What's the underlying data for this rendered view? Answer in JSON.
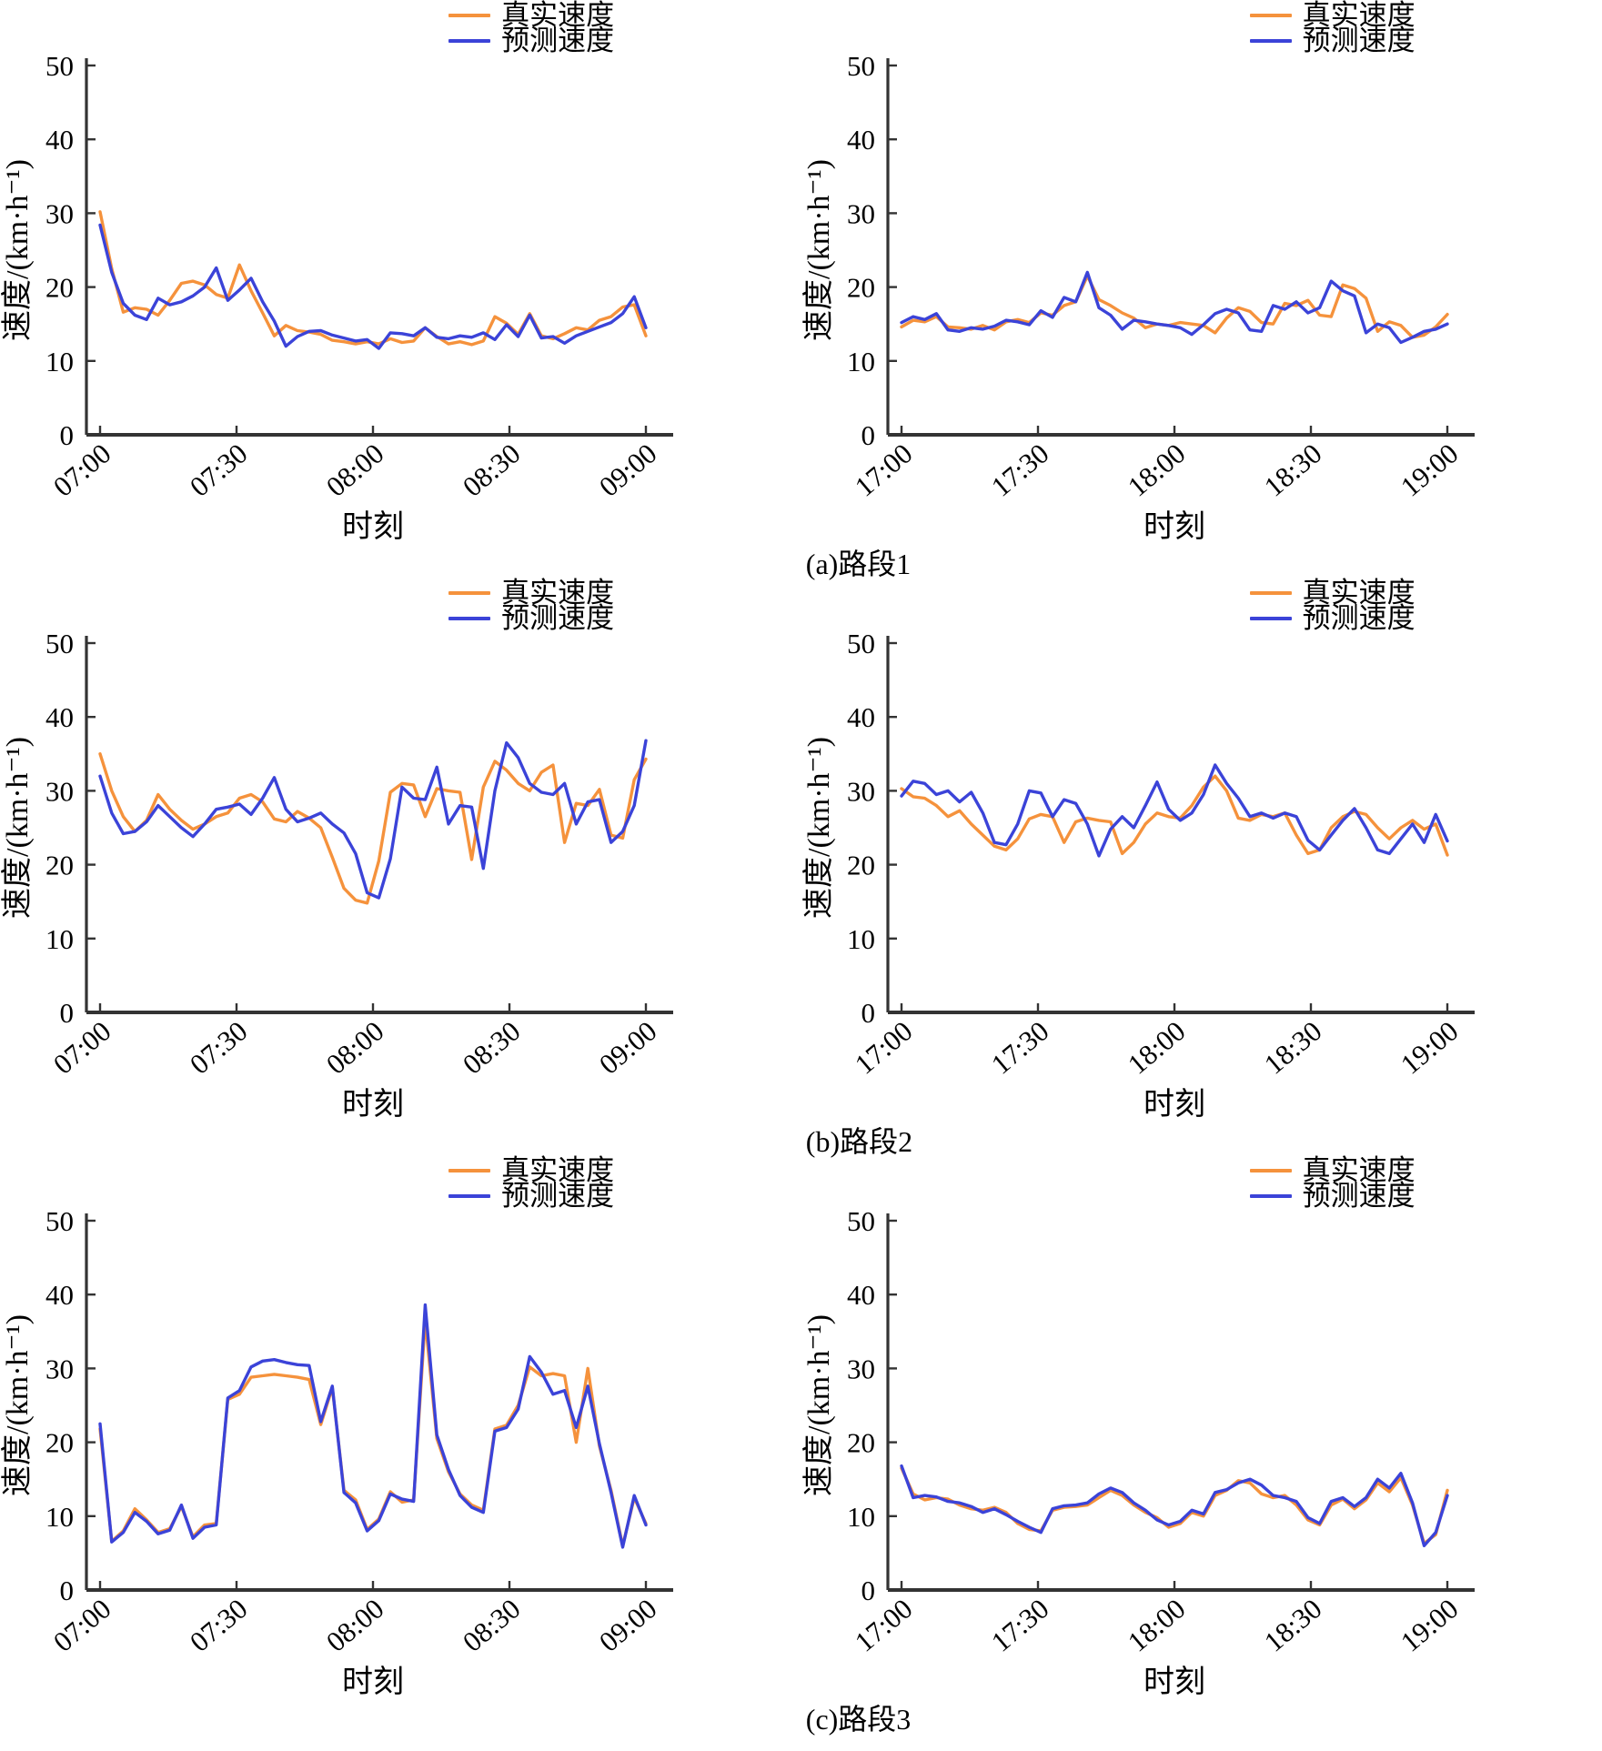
{
  "page": {
    "background": "#ffffff"
  },
  "colors": {
    "real_series": "#f5923c",
    "pred_series": "#3b43d8",
    "axis": "#333333",
    "text": "#000000"
  },
  "legend": {
    "real": "真实速度",
    "pred": "预测速度"
  },
  "captions": [
    "(a)路段1",
    "(b)路段2",
    "(c)路段3"
  ],
  "chart_data": [
    {
      "id": "segment1-morning",
      "type": "line",
      "title": "",
      "xlabel": "时刻",
      "ylabel": "速度/(km·h⁻¹)",
      "ylim": [
        0,
        50
      ],
      "yticks": [
        0,
        10,
        20,
        30,
        40,
        50
      ],
      "x_tick_labels": [
        "07:00",
        "07:30",
        "08:00",
        "08:30",
        "09:00"
      ],
      "grid": false,
      "legend_position": "above-top-right",
      "series": [
        {
          "name": "真实速度",
          "color": "#f5923c",
          "values": [
            30.2,
            22.5,
            16.6,
            17.2,
            17.0,
            16.2,
            18.2,
            20.5,
            20.8,
            20.3,
            19.0,
            18.5,
            23.0,
            19.5,
            16.5,
            13.4,
            14.8,
            14.1,
            13.9,
            13.6,
            12.8,
            12.6,
            12.3,
            12.6,
            12.3,
            13.0,
            12.5,
            12.7,
            14.5,
            13.3,
            12.3,
            12.6,
            12.2,
            12.7,
            16.0,
            15.1,
            13.6,
            16.4,
            13.4,
            13.0,
            13.7,
            14.5,
            14.2,
            15.5,
            16.0,
            17.3,
            17.6,
            13.4
          ]
        },
        {
          "name": "预测速度",
          "color": "#3b43d8",
          "values": [
            28.4,
            22.0,
            17.8,
            16.2,
            15.6,
            18.5,
            17.6,
            18.0,
            18.8,
            20.0,
            22.6,
            18.2,
            19.6,
            21.2,
            18.0,
            15.4,
            12.0,
            13.3,
            14.0,
            14.1,
            13.5,
            13.1,
            12.7,
            12.9,
            11.7,
            13.8,
            13.7,
            13.4,
            14.5,
            13.2,
            13.0,
            13.4,
            13.2,
            13.8,
            12.9,
            14.9,
            13.3,
            16.2,
            13.1,
            13.3,
            12.4,
            13.4,
            14.0,
            14.6,
            15.2,
            16.4,
            18.7,
            14.5
          ]
        }
      ]
    },
    {
      "id": "segment1-evening",
      "type": "line",
      "title": "",
      "xlabel": "时刻",
      "ylabel": "速度/(km·h⁻¹)",
      "ylim": [
        0,
        50
      ],
      "yticks": [
        0,
        10,
        20,
        30,
        40,
        50
      ],
      "x_tick_labels": [
        "17:00",
        "17:30",
        "18:00",
        "18:30",
        "19:00"
      ],
      "grid": false,
      "legend_position": "above-top-right",
      "series": [
        {
          "name": "真实速度",
          "color": "#f5923c",
          "values": [
            14.6,
            15.5,
            15.3,
            16.0,
            14.6,
            14.5,
            14.3,
            14.8,
            14.2,
            15.3,
            15.6,
            15.2,
            16.5,
            16.2,
            17.5,
            18.0,
            21.5,
            18.3,
            17.5,
            16.5,
            15.8,
            14.5,
            15.0,
            14.8,
            15.2,
            15.0,
            14.8,
            13.8,
            15.8,
            17.2,
            16.7,
            15.2,
            15.0,
            17.8,
            17.5,
            18.2,
            16.2,
            16.0,
            20.3,
            19.8,
            18.5,
            14.0,
            15.3,
            14.8,
            13.2,
            13.5,
            14.6,
            16.3
          ]
        },
        {
          "name": "预测速度",
          "color": "#3b43d8",
          "values": [
            15.2,
            16.0,
            15.6,
            16.4,
            14.2,
            14.0,
            14.5,
            14.3,
            14.7,
            15.5,
            15.3,
            14.9,
            16.8,
            15.9,
            18.6,
            18.0,
            22.0,
            17.2,
            16.2,
            14.3,
            15.5,
            15.3,
            15.0,
            14.8,
            14.5,
            13.6,
            14.9,
            16.4,
            17.0,
            16.5,
            14.2,
            14.0,
            17.5,
            17.0,
            18.0,
            16.5,
            17.2,
            20.8,
            19.5,
            18.8,
            13.8,
            15.0,
            14.5,
            12.5,
            13.2,
            14.0,
            14.3,
            15.0
          ]
        }
      ]
    },
    {
      "id": "segment2-morning",
      "type": "line",
      "title": "",
      "xlabel": "时刻",
      "ylabel": "速度/(km·h⁻¹)",
      "ylim": [
        0,
        50
      ],
      "yticks": [
        0,
        10,
        20,
        30,
        40,
        50
      ],
      "x_tick_labels": [
        "07:00",
        "07:30",
        "08:00",
        "08:30",
        "09:00"
      ],
      "grid": false,
      "legend_position": "above-top-right",
      "series": [
        {
          "name": "真实速度",
          "color": "#f5923c",
          "values": [
            35.0,
            30.0,
            26.5,
            24.5,
            26.0,
            29.5,
            27.5,
            26.0,
            24.8,
            25.5,
            26.5,
            27.0,
            29.0,
            29.5,
            28.5,
            26.2,
            25.8,
            27.2,
            26.3,
            25.0,
            21.0,
            16.8,
            15.2,
            14.8,
            20.5,
            29.8,
            31.0,
            30.8,
            26.5,
            30.3,
            30.0,
            29.8,
            20.7,
            30.5,
            34.0,
            32.8,
            31.0,
            30.0,
            32.5,
            33.5,
            23.0,
            28.3,
            28.0,
            30.2,
            24.0,
            23.6,
            31.5,
            34.3
          ]
        },
        {
          "name": "预测速度",
          "color": "#3b43d8",
          "values": [
            32.0,
            27.0,
            24.2,
            24.5,
            25.8,
            28.0,
            26.5,
            25.0,
            23.8,
            25.5,
            27.5,
            27.8,
            28.2,
            26.8,
            29.0,
            31.8,
            27.5,
            25.8,
            26.3,
            27.0,
            25.5,
            24.3,
            21.5,
            16.2,
            15.5,
            20.8,
            30.5,
            29.0,
            28.8,
            33.2,
            25.5,
            28.0,
            27.8,
            19.5,
            30.0,
            36.5,
            34.5,
            31.0,
            29.8,
            29.5,
            31.0,
            25.5,
            28.5,
            28.8,
            23.0,
            24.5,
            28.0,
            36.8
          ]
        }
      ]
    },
    {
      "id": "segment2-evening",
      "type": "line",
      "title": "",
      "xlabel": "时刻",
      "ylabel": "速度/(km·h⁻¹)",
      "ylim": [
        0,
        50
      ],
      "yticks": [
        0,
        10,
        20,
        30,
        40,
        50
      ],
      "x_tick_labels": [
        "17:00",
        "17:30",
        "18:00",
        "18:30",
        "19:00"
      ],
      "grid": false,
      "legend_position": "above-top-right",
      "series": [
        {
          "name": "真实速度",
          "color": "#f5923c",
          "values": [
            30.3,
            29.2,
            29.0,
            28.0,
            26.5,
            27.3,
            25.5,
            24.0,
            22.5,
            22.0,
            23.5,
            26.2,
            26.8,
            26.5,
            23.0,
            25.8,
            26.3,
            26.0,
            25.8,
            21.5,
            23.0,
            25.5,
            27.0,
            26.5,
            26.3,
            28.0,
            30.5,
            32.0,
            30.0,
            26.3,
            26.0,
            26.8,
            26.5,
            27.0,
            24.0,
            21.5,
            22.0,
            25.0,
            26.5,
            27.2,
            26.8,
            25.0,
            23.5,
            25.0,
            26.0,
            24.8,
            25.5,
            21.3
          ]
        },
        {
          "name": "预测速度",
          "color": "#3b43d8",
          "values": [
            29.3,
            31.3,
            31.0,
            29.5,
            30.0,
            28.5,
            29.8,
            27.0,
            23.0,
            22.7,
            25.5,
            30.0,
            29.7,
            26.5,
            28.8,
            28.3,
            25.5,
            21.2,
            24.8,
            26.5,
            25.0,
            28.0,
            31.2,
            27.5,
            26.0,
            27.0,
            29.5,
            33.5,
            31.0,
            29.0,
            26.5,
            27.0,
            26.3,
            27.0,
            26.5,
            23.3,
            22.0,
            24.0,
            26.0,
            27.6,
            25.0,
            22.0,
            21.5,
            23.5,
            25.5,
            23.0,
            26.8,
            23.2
          ]
        }
      ]
    },
    {
      "id": "segment3-morning",
      "type": "line",
      "title": "",
      "xlabel": "时刻",
      "ylabel": "速度/(km·h⁻¹)",
      "ylim": [
        0,
        50
      ],
      "yticks": [
        0,
        10,
        20,
        30,
        40,
        50
      ],
      "x_tick_labels": [
        "07:00",
        "07:30",
        "08:00",
        "08:30",
        "09:00"
      ],
      "grid": false,
      "legend_position": "above-top-right",
      "series": [
        {
          "name": "真实速度",
          "color": "#f5923c",
          "values": [
            21.8,
            6.6,
            8.0,
            11.0,
            9.5,
            7.8,
            8.3,
            11.3,
            7.2,
            8.8,
            9.0,
            25.8,
            26.5,
            28.8,
            29.0,
            29.2,
            29.0,
            28.8,
            28.5,
            22.4,
            27.4,
            13.5,
            12.2,
            8.2,
            9.6,
            13.3,
            11.9,
            12.2,
            36.6,
            20.5,
            16.0,
            13.0,
            11.5,
            10.8,
            21.8,
            22.3,
            25.0,
            30.2,
            29.0,
            29.3,
            29.0,
            20.0,
            30.0,
            19.5,
            13.5,
            6.0,
            12.5,
            9.0
          ]
        },
        {
          "name": "预测速度",
          "color": "#3b43d8",
          "values": [
            22.5,
            6.5,
            7.8,
            10.5,
            9.3,
            7.6,
            8.1,
            11.5,
            7.0,
            8.5,
            8.8,
            26.0,
            27.0,
            30.2,
            31.0,
            31.2,
            30.8,
            30.5,
            30.4,
            22.8,
            27.6,
            13.2,
            11.8,
            8.0,
            9.4,
            13.0,
            12.3,
            12.0,
            38.6,
            21.0,
            16.3,
            12.8,
            11.2,
            10.5,
            21.5,
            22.0,
            24.5,
            31.6,
            29.5,
            26.5,
            27.0,
            22.0,
            27.6,
            19.8,
            13.2,
            5.8,
            12.8,
            8.8
          ]
        }
      ]
    },
    {
      "id": "segment3-evening",
      "type": "line",
      "title": "",
      "xlabel": "时刻",
      "ylabel": "速度/(km·h⁻¹)",
      "ylim": [
        0,
        50
      ],
      "yticks": [
        0,
        10,
        20,
        30,
        40,
        50
      ],
      "x_tick_labels": [
        "17:00",
        "17:30",
        "18:00",
        "18:30",
        "19:00"
      ],
      "grid": false,
      "legend_position": "above-top-right",
      "series": [
        {
          "name": "真实速度",
          "color": "#f5923c",
          "values": [
            16.5,
            13.0,
            12.2,
            12.5,
            12.3,
            11.5,
            11.0,
            10.8,
            11.2,
            10.5,
            9.0,
            8.2,
            8.0,
            10.8,
            11.2,
            11.3,
            11.5,
            12.5,
            13.5,
            12.8,
            11.5,
            10.5,
            9.8,
            8.5,
            9.0,
            10.5,
            10.0,
            12.8,
            13.5,
            14.8,
            14.5,
            13.0,
            12.5,
            12.8,
            11.5,
            9.5,
            8.8,
            11.5,
            12.3,
            11.0,
            12.2,
            14.5,
            13.3,
            15.2,
            11.5,
            6.3,
            7.5,
            13.5
          ]
        },
        {
          "name": "预测速度",
          "color": "#3b43d8",
          "values": [
            16.8,
            12.5,
            12.8,
            12.6,
            12.0,
            11.8,
            11.3,
            10.5,
            11.0,
            10.2,
            9.3,
            8.5,
            7.8,
            11.0,
            11.4,
            11.5,
            11.8,
            13.0,
            13.8,
            13.2,
            11.8,
            10.8,
            9.5,
            8.8,
            9.3,
            10.8,
            10.3,
            13.2,
            13.6,
            14.5,
            15.0,
            14.2,
            12.8,
            12.5,
            12.0,
            9.8,
            9.0,
            12.0,
            12.5,
            11.3,
            12.5,
            15.0,
            13.8,
            15.8,
            11.8,
            6.0,
            7.8,
            12.8
          ]
        }
      ]
    }
  ]
}
